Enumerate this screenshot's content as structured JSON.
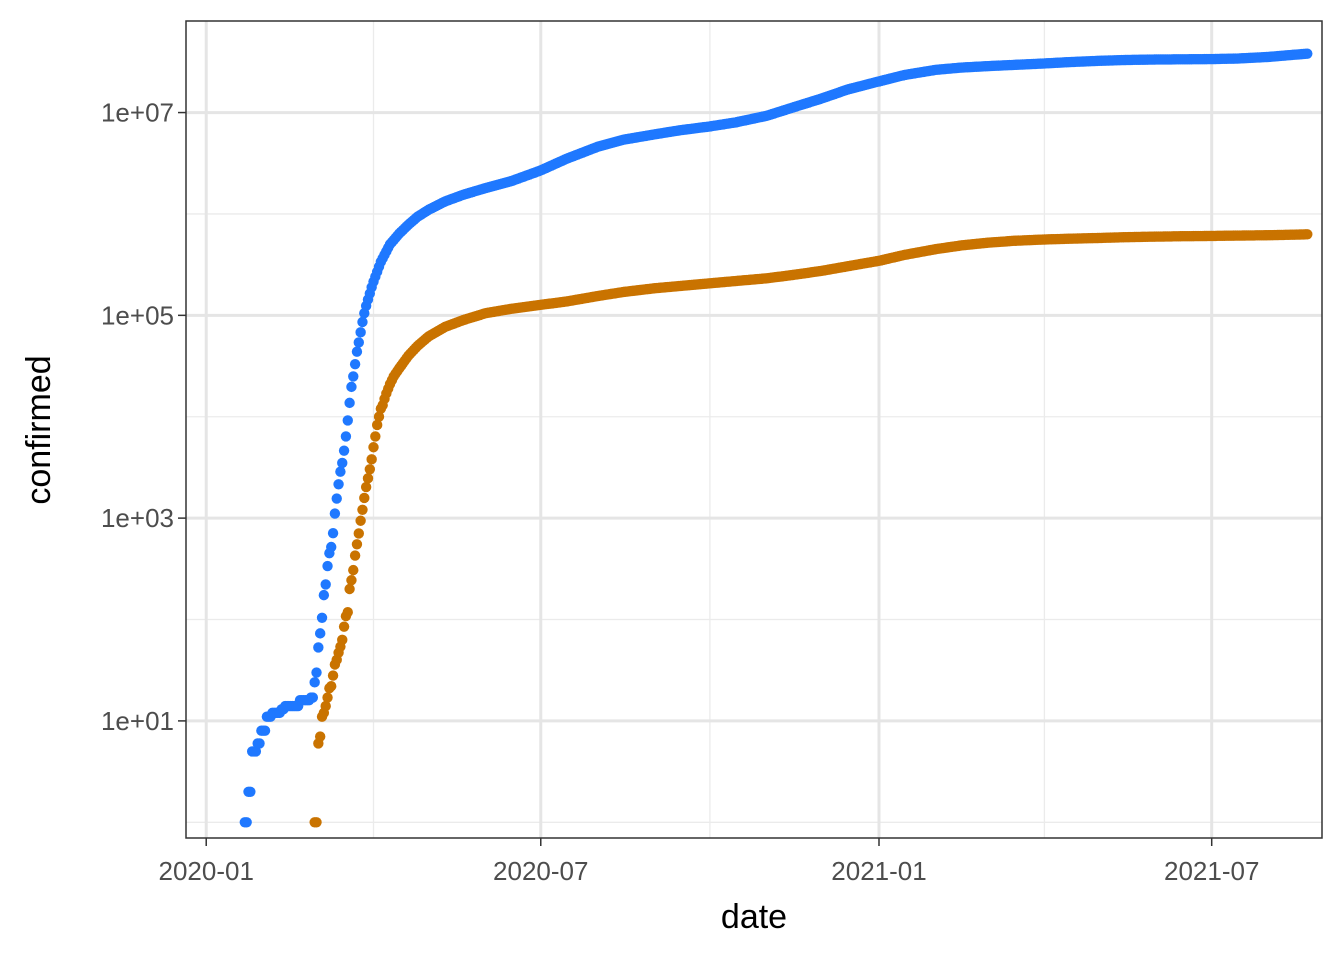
{
  "chart_data": {
    "type": "scatter",
    "xlabel": "date",
    "ylabel": "confirmed",
    "x_axis": {
      "kind": "date",
      "range": [
        "2019-12-21",
        "2021-08-30"
      ],
      "ticks": [
        {
          "date": "2020-01-01",
          "label": "2020-01"
        },
        {
          "date": "2020-07-01",
          "label": "2020-07"
        },
        {
          "date": "2021-01-01",
          "label": "2021-01"
        },
        {
          "date": "2021-07-01",
          "label": "2021-07"
        }
      ],
      "minor_gridlines": [
        "2020-04-01",
        "2020-10-01",
        "2021-04-01"
      ]
    },
    "y_axis": {
      "scale": "log10",
      "range": [
        0.7,
        80000000
      ],
      "ticks": [
        {
          "value": 10,
          "label": "1e+01"
        },
        {
          "value": 1000,
          "label": "1e+03"
        },
        {
          "value": 100000,
          "label": "1e+05"
        },
        {
          "value": 10000000,
          "label": "1e+07"
        }
      ],
      "minor_gridlines": [
        1,
        100,
        10000,
        1000000
      ]
    },
    "grid": true,
    "legend": "none",
    "series": [
      {
        "color": "#1f78ff",
        "points": [
          [
            "2020-01-22",
            1
          ],
          [
            "2020-01-23",
            1
          ],
          [
            "2020-01-24",
            2
          ],
          [
            "2020-01-25",
            2
          ],
          [
            "2020-01-26",
            5
          ],
          [
            "2020-01-27",
            5
          ],
          [
            "2020-01-28",
            5
          ],
          [
            "2020-01-29",
            6
          ],
          [
            "2020-01-30",
            6
          ],
          [
            "2020-01-31",
            8
          ],
          [
            "2020-02-01",
            8
          ],
          [
            "2020-02-02",
            8
          ],
          [
            "2020-02-03",
            11
          ],
          [
            "2020-02-04",
            11
          ],
          [
            "2020-02-05",
            11
          ],
          [
            "2020-02-06",
            12
          ],
          [
            "2020-02-07",
            12
          ],
          [
            "2020-02-08",
            12
          ],
          [
            "2020-02-09",
            12
          ],
          [
            "2020-02-10",
            12
          ],
          [
            "2020-02-11",
            13
          ],
          [
            "2020-02-12",
            13
          ],
          [
            "2020-02-13",
            14
          ],
          [
            "2020-02-14",
            14
          ],
          [
            "2020-02-15",
            14
          ],
          [
            "2020-02-16",
            14
          ],
          [
            "2020-02-17",
            14
          ],
          [
            "2020-02-18",
            14
          ],
          [
            "2020-02-19",
            14
          ],
          [
            "2020-02-20",
            14
          ],
          [
            "2020-02-21",
            16
          ],
          [
            "2020-02-22",
            16
          ],
          [
            "2020-02-23",
            16
          ],
          [
            "2020-02-24",
            16
          ],
          [
            "2020-02-25",
            16
          ],
          [
            "2020-02-26",
            16
          ],
          [
            "2020-02-27",
            17
          ],
          [
            "2020-02-28",
            17
          ],
          [
            "2020-02-29",
            24
          ],
          [
            "2020-03-01",
            30
          ],
          [
            "2020-03-02",
            53
          ],
          [
            "2020-03-03",
            73
          ],
          [
            "2020-03-04",
            104
          ],
          [
            "2020-03-05",
            174
          ],
          [
            "2020-03-06",
            222
          ],
          [
            "2020-03-07",
            337
          ],
          [
            "2020-03-08",
            451
          ],
          [
            "2020-03-09",
            519
          ],
          [
            "2020-03-10",
            711
          ],
          [
            "2020-03-11",
            1109
          ],
          [
            "2020-03-12",
            1561
          ],
          [
            "2020-03-13",
            2157
          ],
          [
            "2020-03-14",
            2870
          ],
          [
            "2020-03-15",
            3500
          ],
          [
            "2020-03-16",
            4630
          ],
          [
            "2020-03-17",
            6400
          ],
          [
            "2020-03-18",
            9200
          ],
          [
            "2020-03-19",
            13700
          ],
          [
            "2020-03-20",
            19700
          ],
          [
            "2020-03-21",
            25000
          ],
          [
            "2020-03-22",
            33000
          ],
          [
            "2020-03-23",
            43800
          ],
          [
            "2020-03-24",
            54000
          ],
          [
            "2020-03-25",
            68000
          ],
          [
            "2020-03-26",
            86000
          ],
          [
            "2020-03-27",
            105000
          ],
          [
            "2020-03-28",
            124000
          ],
          [
            "2020-03-29",
            143000
          ],
          [
            "2020-03-30",
            164000
          ],
          [
            "2020-03-31",
            189000
          ],
          [
            "2020-04-01",
            215000
          ],
          [
            "2020-04-05",
            337000
          ],
          [
            "2020-04-10",
            502000
          ],
          [
            "2020-04-15",
            640000
          ],
          [
            "2020-04-20",
            784000
          ],
          [
            "2020-04-25",
            939000
          ],
          [
            "2020-05-01",
            1100000
          ],
          [
            "2020-05-10",
            1330000
          ],
          [
            "2020-05-20",
            1550000
          ],
          [
            "2020-06-01",
            1800000
          ],
          [
            "2020-06-15",
            2110000
          ],
          [
            "2020-07-01",
            2690000
          ],
          [
            "2020-07-15",
            3500000
          ],
          [
            "2020-08-01",
            4600000
          ],
          [
            "2020-08-15",
            5400000
          ],
          [
            "2020-09-01",
            6100000
          ],
          [
            "2020-09-15",
            6700000
          ],
          [
            "2020-10-01",
            7300000
          ],
          [
            "2020-10-15",
            8000000
          ],
          [
            "2020-11-01",
            9300000
          ],
          [
            "2020-11-15",
            11200000
          ],
          [
            "2020-12-01",
            13800000
          ],
          [
            "2020-12-15",
            16900000
          ],
          [
            "2021-01-01",
            20300000
          ],
          [
            "2021-01-15",
            23500000
          ],
          [
            "2021-02-01",
            26400000
          ],
          [
            "2021-02-15",
            27800000
          ],
          [
            "2021-03-01",
            28700000
          ],
          [
            "2021-03-15",
            29500000
          ],
          [
            "2021-04-01",
            30500000
          ],
          [
            "2021-04-15",
            31500000
          ],
          [
            "2021-05-01",
            32400000
          ],
          [
            "2021-05-15",
            33000000
          ],
          [
            "2021-06-01",
            33400000
          ],
          [
            "2021-06-15",
            33500000
          ],
          [
            "2021-07-01",
            33700000
          ],
          [
            "2021-07-15",
            34100000
          ],
          [
            "2021-08-01",
            35400000
          ],
          [
            "2021-08-15",
            37200000
          ],
          [
            "2021-08-22",
            38100000
          ]
        ]
      },
      {
        "color": "#c97300",
        "points": [
          [
            "2020-02-29",
            1
          ],
          [
            "2020-03-01",
            1
          ],
          [
            "2020-03-02",
            6
          ],
          [
            "2020-03-03",
            7
          ],
          [
            "2020-03-04",
            11
          ],
          [
            "2020-03-05",
            12
          ],
          [
            "2020-03-06",
            14
          ],
          [
            "2020-03-07",
            17
          ],
          [
            "2020-03-08",
            21
          ],
          [
            "2020-03-09",
            22
          ],
          [
            "2020-03-10",
            28
          ],
          [
            "2020-03-11",
            36
          ],
          [
            "2020-03-12",
            40
          ],
          [
            "2020-03-13",
            47
          ],
          [
            "2020-03-14",
            54
          ],
          [
            "2020-03-15",
            63
          ],
          [
            "2020-03-16",
            85
          ],
          [
            "2020-03-17",
            108
          ],
          [
            "2020-03-18",
            118
          ],
          [
            "2020-03-19",
            200
          ],
          [
            "2020-03-20",
            244
          ],
          [
            "2020-03-21",
            307
          ],
          [
            "2020-03-22",
            427
          ],
          [
            "2020-03-23",
            552
          ],
          [
            "2020-03-24",
            706
          ],
          [
            "2020-03-25",
            942
          ],
          [
            "2020-03-26",
            1209
          ],
          [
            "2020-03-27",
            1581
          ],
          [
            "2020-03-28",
            2026
          ],
          [
            "2020-03-29",
            2467
          ],
          [
            "2020-03-30",
            3031
          ],
          [
            "2020-03-31",
            3800
          ],
          [
            "2020-04-01",
            5000
          ],
          [
            "2020-04-02",
            6400
          ],
          [
            "2020-04-03",
            8300
          ],
          [
            "2020-04-04",
            10000
          ],
          [
            "2020-04-05",
            12000
          ],
          [
            "2020-04-06",
            13000
          ],
          [
            "2020-04-07",
            15000
          ],
          [
            "2020-04-08",
            17000
          ],
          [
            "2020-04-10",
            21000
          ],
          [
            "2020-04-12",
            25000
          ],
          [
            "2020-04-15",
            30000
          ],
          [
            "2020-04-20",
            40000
          ],
          [
            "2020-04-25",
            50000
          ],
          [
            "2020-05-01",
            62000
          ],
          [
            "2020-05-10",
            77000
          ],
          [
            "2020-05-20",
            90000
          ],
          [
            "2020-06-01",
            105000
          ],
          [
            "2020-06-15",
            116000
          ],
          [
            "2020-07-01",
            127000
          ],
          [
            "2020-07-15",
            137000
          ],
          [
            "2020-08-01",
            155000
          ],
          [
            "2020-08-15",
            170000
          ],
          [
            "2020-09-01",
            185000
          ],
          [
            "2020-09-15",
            195000
          ],
          [
            "2020-10-01",
            207000
          ],
          [
            "2020-10-15",
            218000
          ],
          [
            "2020-11-01",
            232000
          ],
          [
            "2020-11-15",
            250000
          ],
          [
            "2020-12-01",
            275000
          ],
          [
            "2020-12-15",
            305000
          ],
          [
            "2021-01-01",
            345000
          ],
          [
            "2021-01-15",
            395000
          ],
          [
            "2021-02-01",
            450000
          ],
          [
            "2021-02-15",
            490000
          ],
          [
            "2021-03-01",
            520000
          ],
          [
            "2021-03-15",
            543000
          ],
          [
            "2021-04-01",
            560000
          ],
          [
            "2021-04-15",
            570000
          ],
          [
            "2021-05-01",
            580000
          ],
          [
            "2021-05-15",
            590000
          ],
          [
            "2021-06-01",
            598000
          ],
          [
            "2021-06-15",
            603000
          ],
          [
            "2021-07-01",
            607000
          ],
          [
            "2021-07-15",
            612000
          ],
          [
            "2021-08-01",
            617000
          ],
          [
            "2021-08-15",
            625000
          ],
          [
            "2021-08-22",
            630000
          ]
        ]
      }
    ]
  }
}
